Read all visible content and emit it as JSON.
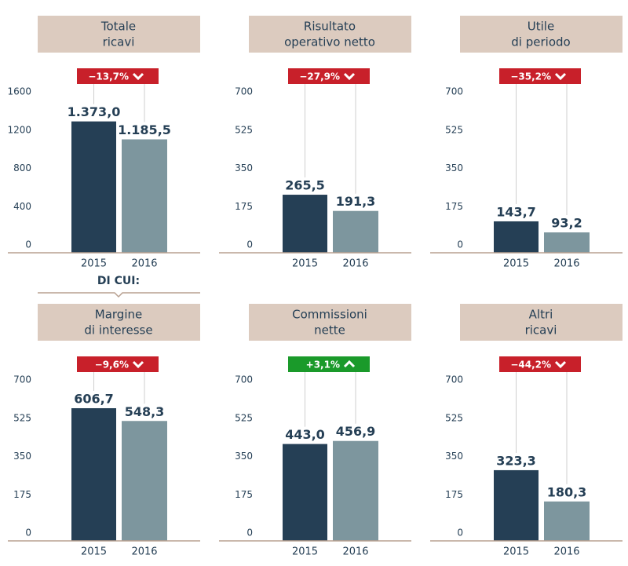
{
  "section_label": "DI CUI:",
  "chart_data": [
    {
      "type": "bar",
      "title": [
        "Totale",
        "ricavi"
      ],
      "annotation": "−13,7%",
      "annotation_color": "#c8202a",
      "annotation_direction": "down",
      "categories": [
        "2015",
        "2016"
      ],
      "values": [
        1373.0,
        1185.5
      ],
      "value_labels": [
        "1.373,0",
        "1.185,5"
      ],
      "colors": [
        "#253f55",
        "#7d969e"
      ],
      "ylim": [
        0,
        1600
      ],
      "yticks": [
        0,
        400,
        800,
        1200,
        1600
      ]
    },
    {
      "type": "bar",
      "title": [
        "Risultato",
        "operativo netto"
      ],
      "annotation": "−27,9%",
      "annotation_color": "#c8202a",
      "annotation_direction": "down",
      "categories": [
        "2015",
        "2016"
      ],
      "values": [
        265.5,
        191.3
      ],
      "value_labels": [
        "265,5",
        "191,3"
      ],
      "colors": [
        "#253f55",
        "#7d969e"
      ],
      "ylim": [
        0,
        700
      ],
      "yticks": [
        0,
        175,
        350,
        525,
        700
      ]
    },
    {
      "type": "bar",
      "title": [
        "Utile",
        "di periodo"
      ],
      "annotation": "−35,2%",
      "annotation_color": "#c8202a",
      "annotation_direction": "down",
      "categories": [
        "2015",
        "2016"
      ],
      "values": [
        143.7,
        93.2
      ],
      "value_labels": [
        "143,7",
        "93,2"
      ],
      "colors": [
        "#253f55",
        "#7d969e"
      ],
      "ylim": [
        0,
        700
      ],
      "yticks": [
        0,
        175,
        350,
        525,
        700
      ]
    },
    {
      "type": "bar",
      "title": [
        "Margine",
        "di interesse"
      ],
      "annotation": "−9,6%",
      "annotation_color": "#c8202a",
      "annotation_direction": "down",
      "categories": [
        "2015",
        "2016"
      ],
      "values": [
        606.7,
        548.3
      ],
      "value_labels": [
        "606,7",
        "548,3"
      ],
      "colors": [
        "#253f55",
        "#7d969e"
      ],
      "ylim": [
        0,
        700
      ],
      "yticks": [
        0,
        175,
        350,
        525,
        700
      ]
    },
    {
      "type": "bar",
      "title": [
        "Commissioni",
        "nette"
      ],
      "annotation": "+3,1%",
      "annotation_color": "#1a9a2a",
      "annotation_direction": "up",
      "categories": [
        "2015",
        "2016"
      ],
      "values": [
        443.0,
        456.9
      ],
      "value_labels": [
        "443,0",
        "456,9"
      ],
      "colors": [
        "#253f55",
        "#7d969e"
      ],
      "ylim": [
        0,
        700
      ],
      "yticks": [
        0,
        175,
        350,
        525,
        700
      ]
    },
    {
      "type": "bar",
      "title": [
        "Altri",
        "ricavi"
      ],
      "annotation": "−44,2%",
      "annotation_color": "#c8202a",
      "annotation_direction": "down",
      "categories": [
        "2015",
        "2016"
      ],
      "values": [
        323.3,
        180.3
      ],
      "value_labels": [
        "323,3",
        "180,3"
      ],
      "colors": [
        "#253f55",
        "#7d969e"
      ],
      "ylim": [
        0,
        700
      ],
      "yticks": [
        0,
        175,
        350,
        525,
        700
      ]
    }
  ]
}
